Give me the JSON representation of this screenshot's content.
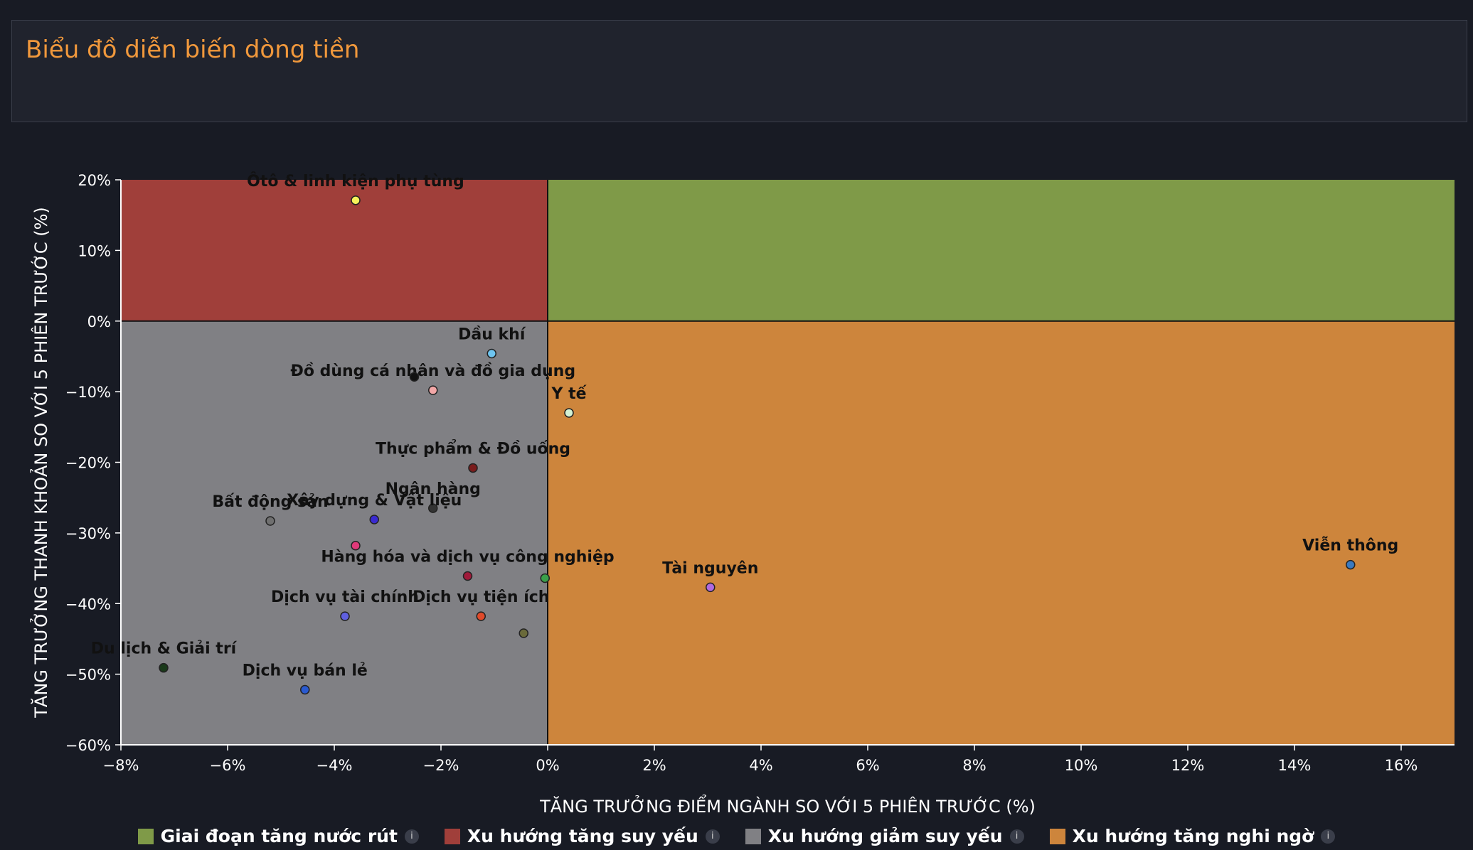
{
  "header": {
    "title": "Biểu đồ diễn biến dòng tiền"
  },
  "chart_data": {
    "type": "scatter",
    "xlabel": "TĂNG TRƯỞNG ĐIỂM NGÀNH SO VỚI 5 PHIÊN TRƯỚC (%)",
    "ylabel": "TĂNG TRƯỞNG THANH KHOẢN SO VỚI 5 PHIÊN TRƯỚC (%)",
    "xlim": [
      -8,
      17
    ],
    "ylim": [
      -60,
      20
    ],
    "xticks": [
      -8,
      -6,
      -4,
      -2,
      0,
      2,
      4,
      6,
      8,
      10,
      12,
      14,
      16
    ],
    "yticks": [
      20,
      10,
      0,
      -10,
      -20,
      -30,
      -40,
      -50,
      -60
    ],
    "xtick_labels": [
      "−8%",
      "−6%",
      "−4%",
      "−2%",
      "0%",
      "2%",
      "4%",
      "6%",
      "8%",
      "10%",
      "12%",
      "14%",
      "16%"
    ],
    "ytick_labels": [
      "20%",
      "10%",
      "0%",
      "−10%",
      "−20%",
      "−30%",
      "−40%",
      "−50%",
      "−60%"
    ],
    "quadrants": [
      {
        "name": "Giai đoạn tăng nước rút",
        "color": "#7f9a48",
        "x": [
          0,
          17
        ],
        "y": [
          0,
          20
        ]
      },
      {
        "name": "Xu hướng tăng suy yếu",
        "color": "#a03f3a",
        "x": [
          -8,
          0
        ],
        "y": [
          0,
          20
        ]
      },
      {
        "name": "Xu hướng giảm suy yếu",
        "color": "#808084",
        "x": [
          -8,
          0
        ],
        "y": [
          -60,
          0
        ]
      },
      {
        "name": "Xu hướng tăng nghi ngờ",
        "color": "#cd853c",
        "x": [
          0,
          17
        ],
        "y": [
          -60,
          0
        ]
      }
    ],
    "points": [
      {
        "label": "Ôtô & linh kiện phụ tùng",
        "x": -3.6,
        "y": 17.1,
        "color": "#f5f25a"
      },
      {
        "label": "Dầu khí",
        "x": -1.05,
        "y": -4.6,
        "color": "#6ec5f0"
      },
      {
        "label": "Đồ dùng cá nhân và đồ gia dụng",
        "x": -2.15,
        "y": -9.8,
        "color": "#f2a7a7"
      },
      {
        "label": "",
        "x": -2.5,
        "y": -7.9,
        "color": "#111111"
      },
      {
        "label": "Y tế",
        "x": 0.4,
        "y": -13.0,
        "color": "#d4f2d4"
      },
      {
        "label": "Thực phẩm & Đồ uống",
        "x": -1.4,
        "y": -20.8,
        "color": "#7a1c1c"
      },
      {
        "label": "Ngân hàng",
        "x": -2.15,
        "y": -26.5,
        "color": "#333333"
      },
      {
        "label": "Bất động sản",
        "x": -5.2,
        "y": -28.3,
        "color": "#707070"
      },
      {
        "label": "Xây dựng & Vật liệu",
        "x": -3.25,
        "y": -28.1,
        "color": "#3a2ad0"
      },
      {
        "label": "",
        "x": -3.6,
        "y": -31.8,
        "color": "#e03a7a"
      },
      {
        "label": "Hàng hóa và dịch vụ công nghiệp",
        "x": -1.5,
        "y": -36.1,
        "color": "#a01a3a"
      },
      {
        "label": "",
        "x": -0.05,
        "y": -36.4,
        "color": "#3aa04a"
      },
      {
        "label": "Dịch vụ tài chính",
        "x": -3.8,
        "y": -41.8,
        "color": "#6060e0"
      },
      {
        "label": "Dịch vụ tiện ích",
        "x": -1.25,
        "y": -41.8,
        "color": "#e04a2a"
      },
      {
        "label": "",
        "x": -0.45,
        "y": -44.2,
        "color": "#6a6a3a"
      },
      {
        "label": "Du lịch & Giải trí",
        "x": -7.2,
        "y": -49.1,
        "color": "#1a3a1a"
      },
      {
        "label": "Dịch vụ bán lẻ",
        "x": -4.55,
        "y": -52.2,
        "color": "#2a5ad0"
      },
      {
        "label": "Tài nguyên",
        "x": 3.05,
        "y": -37.7,
        "color": "#b06ae0"
      },
      {
        "label": "Viễn thông",
        "x": 15.05,
        "y": -34.5,
        "color": "#3a7ac0"
      }
    ]
  },
  "legend": {
    "items": [
      {
        "label": "Giai đoạn tăng nước rút",
        "color": "#7f9a48",
        "info": "i"
      },
      {
        "label": "Xu hướng tăng suy yếu",
        "color": "#a03f3a",
        "info": "i"
      },
      {
        "label": "Xu hướng giảm suy yếu",
        "color": "#808084",
        "info": "i"
      },
      {
        "label": "Xu hướng tăng nghi ngờ",
        "color": "#cd853c",
        "info": "i"
      }
    ]
  }
}
